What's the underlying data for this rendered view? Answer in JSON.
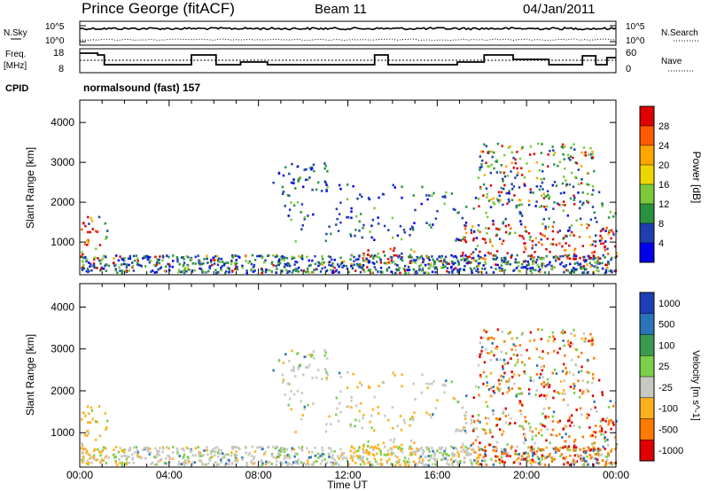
{
  "header": {
    "site": "Prince George (fitACF)",
    "beam": "Beam 11",
    "date": "04/Jan/2011"
  },
  "noise_panel": {
    "left_label": "N.Sky",
    "left_ticks": [
      "10^5",
      "10^0"
    ],
    "right_ticks": [
      "10^5",
      "10^0"
    ],
    "right_label": "N.Search"
  },
  "freq_panel": {
    "left_label_1": "Freq.",
    "left_label_2": "[MHz]",
    "left_ticks": [
      "18",
      "8"
    ],
    "right_ticks": [
      "60",
      "0"
    ],
    "right_label": "Nave"
  },
  "cpid": {
    "label": "CPID",
    "program": "normalsound (fast) 157"
  },
  "chart_data": [
    {
      "type": "heatmap",
      "name": "power",
      "ylabel": "Slant Range [km]",
      "ylim": [
        180,
        4560
      ],
      "yticks": [
        "4000",
        "3000",
        "2000",
        "1000"
      ],
      "colorbar_label": "Power [dB]",
      "colorbar_ticks": [
        "28",
        "24",
        "20",
        "16",
        "12",
        "8",
        "4"
      ],
      "colorbar_colors": [
        "#e00000",
        "#ff5a00",
        "#ffa600",
        "#f0d600",
        "#7cc93a",
        "#2a9140",
        "#1e3fb0",
        "#0000ee"
      ],
      "echo_regions": [
        {
          "t0": 0.0,
          "t1": 0.9,
          "r0": 500,
          "r1": 1700,
          "level": "strong"
        },
        {
          "t0": 1.0,
          "t1": 1.2,
          "r0": 900,
          "r1": 1700,
          "level": "medium"
        },
        {
          "t0": 8.6,
          "t1": 11.2,
          "r0": 2300,
          "r1": 3000,
          "level": "weak"
        },
        {
          "t0": 12.6,
          "t1": 15.0,
          "r0": 500,
          "r1": 900,
          "level": "strong"
        },
        {
          "t0": 17.0,
          "t1": 24.0,
          "r0": 600,
          "r1": 1500,
          "level": "strong"
        },
        {
          "t0": 17.8,
          "t1": 23.0,
          "r0": 1900,
          "r1": 3500,
          "level": "medium"
        }
      ]
    },
    {
      "type": "heatmap",
      "name": "velocity",
      "xlabel": "Time UT",
      "ylabel": "Slant Range [km]",
      "xlim": [
        0,
        24
      ],
      "xticks": [
        "00:00",
        "04:00",
        "08:00",
        "12:00",
        "16:00",
        "20:00",
        "00:00"
      ],
      "ylim": [
        180,
        4560
      ],
      "yticks": [
        "4000",
        "3000",
        "2000",
        "1000"
      ],
      "colorbar_label": "Velocity [m s^-1]",
      "colorbar_ticks": [
        "1000",
        "500",
        "100",
        "25",
        "-25",
        "-100",
        "-500",
        "-1000"
      ],
      "colorbar_colors": [
        "#1c3fb8",
        "#2a74b8",
        "#3a9a50",
        "#7ccf4a",
        "#c8c8c0",
        "#ffb020",
        "#ff7a00",
        "#e00000"
      ]
    }
  ]
}
